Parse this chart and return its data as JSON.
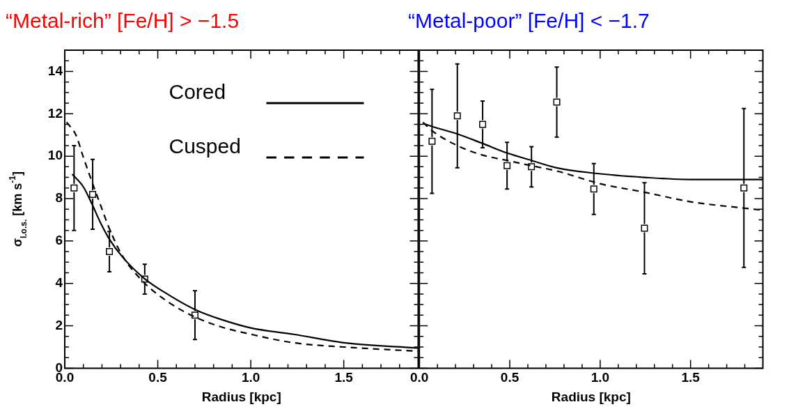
{
  "chart_data": [
    {
      "type": "scatter",
      "title": "“Metal-rich” [Fe/H] > −1.5",
      "xlabel": "Radius [kpc]",
      "ylabel": "σ$_{l.o.s.}$ [km s$^{-1}$]",
      "xlim": [
        0,
        1.9
      ],
      "ylim": [
        0,
        15
      ],
      "grid": false,
      "legend": "top right",
      "xticks": [
        {
          "value": 0,
          "label": "0.0"
        },
        {
          "value": 0.1,
          "label": null
        },
        {
          "value": 0.2,
          "label": null
        },
        {
          "value": 0.3,
          "label": null
        },
        {
          "value": 0.4,
          "label": null
        },
        {
          "value": 0.5,
          "label": "0.5"
        },
        {
          "value": 0.6,
          "label": null
        },
        {
          "value": 0.7,
          "label": null
        },
        {
          "value": 0.8,
          "label": null
        },
        {
          "value": 0.9,
          "label": null
        },
        {
          "value": 1,
          "label": "1.0"
        },
        {
          "value": 1.1,
          "label": null
        },
        {
          "value": 1.2,
          "label": null
        },
        {
          "value": 1.3,
          "label": null
        },
        {
          "value": 1.4,
          "label": null
        },
        {
          "value": 1.5,
          "label": "1.5"
        },
        {
          "value": 1.6,
          "label": null
        },
        {
          "value": 1.7,
          "label": null
        },
        {
          "value": 1.8,
          "label": null
        }
      ],
      "yticks": [
        0,
        {
          "value": 0.5,
          "label": null
        },
        {
          "value": 1,
          "label": null
        },
        {
          "value": 1.5,
          "label": null
        },
        2,
        {
          "value": 2.5,
          "label": null
        },
        {
          "value": 3,
          "label": null
        },
        {
          "value": 3.5,
          "label": null
        },
        4,
        {
          "value": 4.5,
          "label": null
        },
        {
          "value": 5,
          "label": null
        },
        {
          "value": 5.5,
          "label": null
        },
        6,
        {
          "value": 6.5,
          "label": null
        },
        {
          "value": 7,
          "label": null
        },
        {
          "value": 7.5,
          "label": null
        },
        8,
        {
          "value": 8.5,
          "label": null
        },
        {
          "value": 9,
          "label": null
        },
        {
          "value": 9.5,
          "label": null
        },
        10,
        {
          "value": 10.5,
          "label": null
        },
        {
          "value": 11,
          "label": null
        },
        {
          "value": 11.5,
          "label": null
        },
        12,
        {
          "value": 12.5,
          "label": null
        },
        {
          "value": 13,
          "label": null
        },
        {
          "value": 13.5,
          "label": null
        },
        14,
        {
          "value": 14.5,
          "label": null
        }
      ],
      "series": [
        {
          "type": "scatter",
          "marker": "square",
          "color": "#000000",
          "x": [
            0.05,
            0.15,
            0.24,
            0.43,
            0.7
          ],
          "values": [
            8.5,
            8.2,
            5.5,
            4.2,
            2.5
          ],
          "errors": [
            2.0,
            1.65,
            0.95,
            0.7,
            1.15
          ]
        },
        {
          "type": "line",
          "name": "Cored",
          "line_style": "solid",
          "color": "#000000",
          "x": [
            0.04,
            0.1,
            0.146,
            0.19,
            0.239,
            0.31,
            0.425,
            0.56,
            0.704,
            0.84,
            1.0,
            1.23,
            1.5,
            1.9
          ],
          "values": [
            9.15,
            8.55,
            7.75,
            6.9,
            6.1,
            5.25,
            4.25,
            3.45,
            2.75,
            2.3,
            1.9,
            1.6,
            1.2,
            0.95
          ]
        },
        {
          "type": "line",
          "name": "Cusped",
          "line_style": "dashed",
          "color": "#000000",
          "x": [
            0.01,
            0.06,
            0.1,
            0.146,
            0.19,
            0.239,
            0.31,
            0.425,
            0.56,
            0.704,
            0.84,
            1.0,
            1.23,
            1.5,
            1.9
          ],
          "values": [
            11.6,
            11.0,
            9.95,
            8.8,
            7.75,
            6.6,
            5.3,
            4.05,
            3.1,
            2.4,
            1.95,
            1.6,
            1.2,
            1.0,
            0.8
          ]
        }
      ]
    },
    {
      "type": "scatter",
      "title": "“Metal-poor” [Fe/H] < −1.7",
      "xlabel": "Radius [kpc]",
      "xlim": [
        0,
        1.9
      ],
      "ylim": [
        0,
        15
      ],
      "grid": false,
      "tick_labels": "x",
      "xticks": [
        {
          "value": 0,
          "label": "0.0"
        },
        {
          "value": 0.1,
          "label": null
        },
        {
          "value": 0.2,
          "label": null
        },
        {
          "value": 0.3,
          "label": null
        },
        {
          "value": 0.4,
          "label": null
        },
        {
          "value": 0.5,
          "label": "0.5"
        },
        {
          "value": 0.6,
          "label": null
        },
        {
          "value": 0.7,
          "label": null
        },
        {
          "value": 0.8,
          "label": null
        },
        {
          "value": 0.9,
          "label": null
        },
        {
          "value": 1,
          "label": "1.0"
        },
        {
          "value": 1.1,
          "label": null
        },
        {
          "value": 1.2,
          "label": null
        },
        {
          "value": 1.3,
          "label": null
        },
        {
          "value": 1.4,
          "label": null
        },
        {
          "value": 1.5,
          "label": "1.5"
        },
        {
          "value": 1.6,
          "label": null
        },
        {
          "value": 1.7,
          "label": null
        },
        {
          "value": 1.8,
          "label": null
        }
      ],
      "yticks": [
        0,
        {
          "value": 0.5,
          "label": null
        },
        {
          "value": 1,
          "label": null
        },
        {
          "value": 1.5,
          "label": null
        },
        2,
        {
          "value": 2.5,
          "label": null
        },
        {
          "value": 3,
          "label": null
        },
        {
          "value": 3.5,
          "label": null
        },
        4,
        {
          "value": 4.5,
          "label": null
        },
        {
          "value": 5,
          "label": null
        },
        {
          "value": 5.5,
          "label": null
        },
        6,
        {
          "value": 6.5,
          "label": null
        },
        {
          "value": 7,
          "label": null
        },
        {
          "value": 7.5,
          "label": null
        },
        8,
        {
          "value": 8.5,
          "label": null
        },
        {
          "value": 9,
          "label": null
        },
        {
          "value": 9.5,
          "label": null
        },
        10,
        {
          "value": 10.5,
          "label": null
        },
        {
          "value": 11,
          "label": null
        },
        {
          "value": 11.5,
          "label": null
        },
        12,
        {
          "value": 12.5,
          "label": null
        },
        {
          "value": 13,
          "label": null
        },
        {
          "value": 13.5,
          "label": null
        },
        14,
        {
          "value": 14.5,
          "label": null
        }
      ],
      "series": [
        {
          "type": "scatter",
          "marker": "square",
          "color": "#000000",
          "x": [
            0.07,
            0.21,
            0.35,
            0.485,
            0.62,
            0.76,
            0.965,
            1.245,
            1.795
          ],
          "values": [
            10.7,
            11.9,
            11.5,
            9.55,
            9.5,
            12.55,
            8.45,
            6.6,
            8.5
          ],
          "errors": [
            2.45,
            2.45,
            1.1,
            1.1,
            0.95,
            1.65,
            1.2,
            2.15,
            3.75
          ]
        },
        {
          "type": "line",
          "line_style": "solid",
          "color": "#000000",
          "x": [
            0.02,
            0.07,
            0.21,
            0.35,
            0.485,
            0.62,
            0.76,
            0.965,
            1.245,
            1.5,
            1.9
          ],
          "values": [
            11.55,
            11.4,
            11.05,
            10.6,
            10.15,
            9.8,
            9.45,
            9.2,
            9.0,
            8.9,
            8.9
          ]
        },
        {
          "type": "line",
          "line_style": "dashed",
          "color": "#000000",
          "x": [
            0.02,
            0.07,
            0.21,
            0.35,
            0.485,
            0.62,
            0.76,
            1.0,
            1.245,
            1.5,
            1.795,
            1.9
          ],
          "values": [
            11.6,
            11.2,
            10.5,
            10.05,
            9.8,
            9.55,
            9.3,
            8.7,
            8.3,
            7.85,
            7.55,
            7.45
          ]
        }
      ]
    }
  ]
}
